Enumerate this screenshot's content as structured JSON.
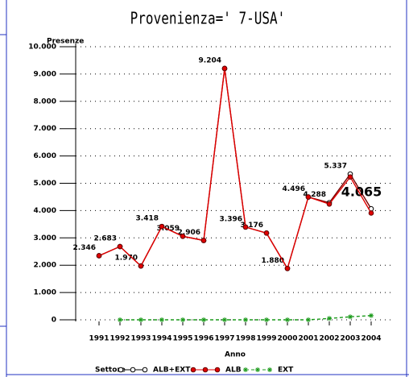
{
  "chart_data": {
    "type": "line",
    "title": "Provenienza=' 7-USA'",
    "y_label": "Presenze",
    "x_label": "Anno",
    "legend_title": "Settore",
    "categories": [
      "1991",
      "1992",
      "1993",
      "1994",
      "1995",
      "1996",
      "1997",
      "1998",
      "1999",
      "2000",
      "2001",
      "2002",
      "2003",
      "2004"
    ],
    "ylim": [
      0,
      10000
    ],
    "yticks": [
      {
        "value": 0,
        "label": "0"
      },
      {
        "value": 1000,
        "label": "1.000"
      },
      {
        "value": 2000,
        "label": "2.000"
      },
      {
        "value": 3000,
        "label": "3.000"
      },
      {
        "value": 4000,
        "label": "4.000"
      },
      {
        "value": 5000,
        "label": "5.000"
      },
      {
        "value": 6000,
        "label": "6.000"
      },
      {
        "value": 7000,
        "label": "7.000"
      },
      {
        "value": 8000,
        "label": "8.000"
      },
      {
        "value": 9000,
        "label": "9.000"
      },
      {
        "value": 10000,
        "label": "10.000"
      }
    ],
    "grid": true,
    "series": [
      {
        "name": "ALB+EXT",
        "color": "#000000",
        "marker": "circle",
        "values": [
          2346,
          2683,
          1970,
          3418,
          3059,
          2906,
          9204,
          3396,
          3176,
          1880,
          4496,
          4288,
          5337,
          4065
        ],
        "value_labels": [
          "2.346",
          "2.683",
          "1.970",
          "3.418",
          "3.059",
          "2.906",
          "9.204",
          "3.396",
          "3.176",
          "1.880",
          "4.496",
          "4.288",
          "5.337",
          "4.065"
        ]
      },
      {
        "name": "ALB",
        "color": "#e00000",
        "marker": "dot",
        "values": [
          2346,
          2683,
          1970,
          3418,
          3059,
          2906,
          9204,
          3396,
          3176,
          1880,
          4496,
          4240,
          5230,
          3910
        ]
      },
      {
        "name": "EXT",
        "color": "#1a9a1a",
        "marker": "star",
        "values": [
          null,
          0,
          0,
          0,
          0,
          0,
          0,
          0,
          0,
          0,
          0,
          50,
          110,
          155
        ]
      }
    ]
  }
}
